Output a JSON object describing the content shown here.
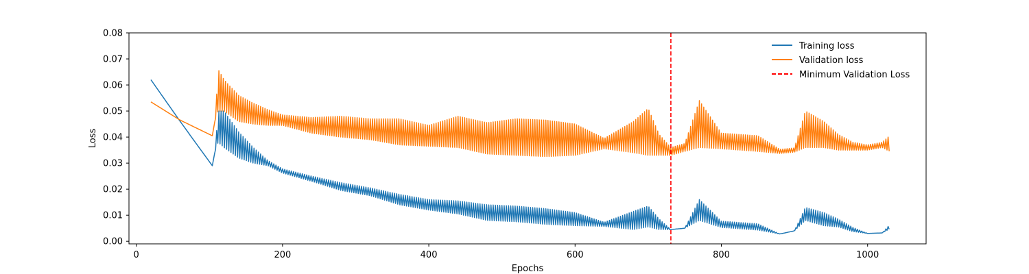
{
  "chart_data": {
    "type": "line",
    "title": "",
    "xlabel": "Epochs",
    "ylabel": "Loss",
    "xlim": [
      -10,
      1080
    ],
    "ylim": [
      -0.001,
      0.08
    ],
    "xticks": [
      0,
      200,
      400,
      600,
      800,
      1000
    ],
    "xtick_labels": [
      "0",
      "200",
      "400",
      "600",
      "800",
      "1000"
    ],
    "yticks": [
      0.0,
      0.01,
      0.02,
      0.03,
      0.04,
      0.05,
      0.06,
      0.07,
      0.08
    ],
    "ytick_labels": [
      "0.00",
      "0.01",
      "0.02",
      "0.03",
      "0.04",
      "0.05",
      "0.06",
      "0.07",
      "0.08"
    ],
    "grid": false,
    "legend_position": "top-right",
    "series": [
      {
        "name": "Training loss",
        "color": "#1f77b4",
        "style": "solid",
        "x": [
          20,
          60,
          104,
          108,
          112,
          120,
          140,
          160,
          180,
          200,
          240,
          280,
          320,
          360,
          400,
          440,
          480,
          520,
          560,
          600,
          640,
          680,
          700,
          715,
          731,
          750,
          770,
          800,
          850,
          880,
          900,
          915,
          940,
          960,
          980,
          1000,
          1020,
          1030
        ],
        "y": [
          0.062,
          0.046,
          0.029,
          0.035,
          0.044,
          0.043,
          0.037,
          0.033,
          0.03,
          0.027,
          0.024,
          0.021,
          0.019,
          0.016,
          0.014,
          0.013,
          0.011,
          0.0105,
          0.0095,
          0.0085,
          0.0065,
          0.008,
          0.0095,
          0.0065,
          0.0045,
          0.005,
          0.012,
          0.0065,
          0.0055,
          0.0028,
          0.004,
          0.0105,
          0.0085,
          0.007,
          0.0045,
          0.003,
          0.0032,
          0.0055
        ],
        "band": [
          0.0,
          0.0,
          0.0,
          0.0,
          0.006,
          0.007,
          0.005,
          0.003,
          0.001,
          0.0008,
          0.001,
          0.0015,
          0.0015,
          0.002,
          0.002,
          0.0025,
          0.003,
          0.003,
          0.003,
          0.0025,
          0.0008,
          0.0035,
          0.004,
          0.002,
          0.0,
          0.0,
          0.004,
          0.0012,
          0.0012,
          0.0,
          0.0,
          0.0025,
          0.0025,
          0.0015,
          0.0008,
          0.0,
          0.0,
          0.0008
        ]
      },
      {
        "name": "Validation loss",
        "color": "#ff7f0e",
        "style": "solid",
        "x": [
          20,
          60,
          104,
          108,
          112,
          120,
          140,
          160,
          180,
          200,
          240,
          280,
          320,
          360,
          400,
          440,
          480,
          520,
          560,
          600,
          640,
          680,
          700,
          715,
          731,
          750,
          770,
          800,
          850,
          880,
          900,
          915,
          940,
          960,
          980,
          1000,
          1020,
          1030
        ],
        "y": [
          0.0535,
          0.0465,
          0.0405,
          0.047,
          0.058,
          0.056,
          0.051,
          0.049,
          0.0475,
          0.0465,
          0.0445,
          0.044,
          0.043,
          0.042,
          0.0405,
          0.042,
          0.0395,
          0.04,
          0.0395,
          0.039,
          0.0375,
          0.04,
          0.042,
          0.037,
          0.0345,
          0.036,
          0.045,
          0.0385,
          0.0375,
          0.0345,
          0.035,
          0.043,
          0.041,
          0.038,
          0.0365,
          0.036,
          0.037,
          0.0375
        ],
        "band": [
          0.0,
          0.0,
          0.0,
          0.0,
          0.008,
          0.006,
          0.005,
          0.004,
          0.003,
          0.002,
          0.003,
          0.004,
          0.004,
          0.005,
          0.004,
          0.006,
          0.006,
          0.007,
          0.007,
          0.006,
          0.002,
          0.006,
          0.009,
          0.004,
          0.0015,
          0.0015,
          0.009,
          0.003,
          0.003,
          0.0008,
          0.0008,
          0.007,
          0.005,
          0.003,
          0.0015,
          0.001,
          0.001,
          0.003
        ]
      }
    ],
    "reference_lines": [
      {
        "name": "Minimum Validation Loss",
        "x": 731,
        "color": "#ff0000",
        "style": "dashed"
      }
    ]
  }
}
